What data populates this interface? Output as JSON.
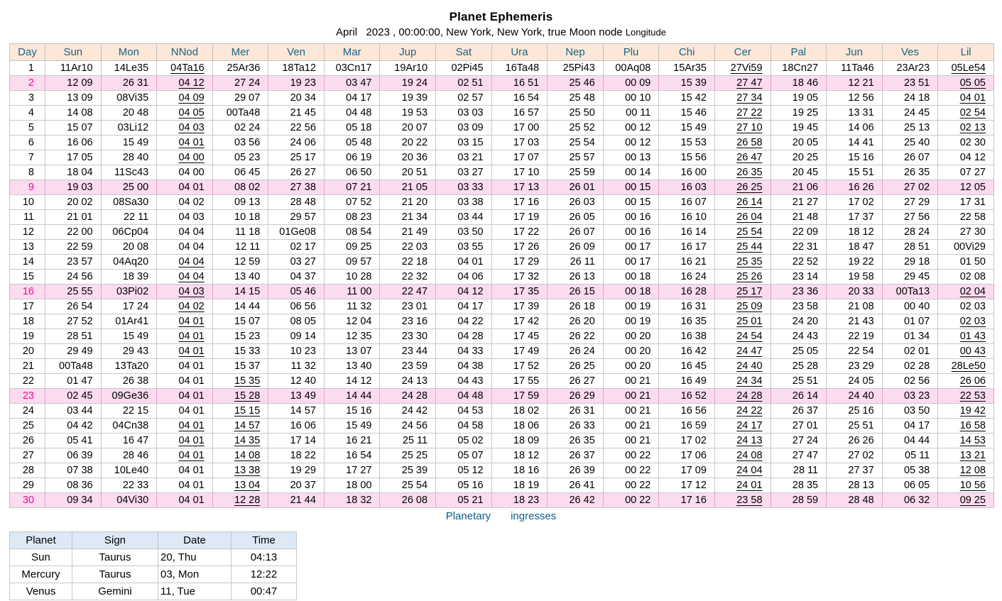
{
  "title": "Planet Ephemeris",
  "subtitle": {
    "main": "April   2023 , 00:00:00, New York, New York, true Moon node ",
    "suffix": "Longitude"
  },
  "colors": {
    "header_bg": "#fce7d9",
    "header_text": "#186582",
    "sunday_row_bg": "#fbdbee",
    "sunday_day_text": "#ee0a9e",
    "link_text": "#0c5f87",
    "ingress_header_bg": "#ddeaf6",
    "grid_border": "#c8c8c8"
  },
  "ephemeris": {
    "columns": [
      "Day",
      "Sun",
      "Mon",
      "NNod",
      "Mer",
      "Ven",
      "Mar",
      "Jup",
      "Sat",
      "Ura",
      "Nep",
      "Plu",
      "Chi",
      "Cer",
      "Pal",
      "Jun",
      "Ves",
      "Lil"
    ],
    "sunday_days": [
      2,
      9,
      16,
      23,
      30
    ],
    "rows": [
      {
        "day": "1",
        "sunday": false,
        "underline": [
          2,
          12,
          16
        ],
        "values": [
          "11Ar10",
          "14Le35",
          "04Ta16",
          "25Ar36",
          "18Ta12",
          "03Cn17",
          "19Ar10",
          "02Pi45",
          "16Ta48",
          "25Pi43",
          "00Aq08",
          "15Ar35",
          "27Vi59",
          "18Cn27",
          "11Ta46",
          "23Ar23",
          "05Le54"
        ]
      },
      {
        "day": "2",
        "sunday": true,
        "underline": [
          2,
          12,
          16
        ],
        "values": [
          "12 09",
          "26 31",
          "04 12",
          "27 24",
          "19 23",
          "03 47",
          "19 24",
          "02 51",
          "16 51",
          "25 46",
          "00 09",
          "15 39",
          "27 47",
          "18 46",
          "12 21",
          "23 51",
          "05 05"
        ]
      },
      {
        "day": "3",
        "sunday": false,
        "underline": [
          2,
          12,
          16
        ],
        "values": [
          "13 09",
          "08Vi35",
          "04 09",
          "29 07",
          "20 34",
          "04 17",
          "19 39",
          "02 57",
          "16 54",
          "25 48",
          "00 10",
          "15 42",
          "27 34",
          "19 05",
          "12 56",
          "24 18",
          "04 01"
        ]
      },
      {
        "day": "4",
        "sunday": false,
        "underline": [
          2,
          12,
          16
        ],
        "values": [
          "14 08",
          "20 48",
          "04 05",
          "00Ta48",
          "21 45",
          "04 48",
          "19 53",
          "03 03",
          "16 57",
          "25 50",
          "00 11",
          "15 46",
          "27 22",
          "19 25",
          "13 31",
          "24 45",
          "02 54"
        ]
      },
      {
        "day": "5",
        "sunday": false,
        "underline": [
          2,
          12,
          16
        ],
        "values": [
          "15 07",
          "03Li12",
          "04 03",
          "02 24",
          "22 56",
          "05 18",
          "20 07",
          "03 09",
          "17 00",
          "25 52",
          "00 12",
          "15 49",
          "27 10",
          "19 45",
          "14 06",
          "25 13",
          "02 13"
        ]
      },
      {
        "day": "6",
        "sunday": false,
        "underline": [
          2,
          12
        ],
        "values": [
          "16 06",
          "15 49",
          "04 01",
          "03 56",
          "24 06",
          "05 48",
          "20 22",
          "03 15",
          "17 03",
          "25 54",
          "00 12",
          "15 53",
          "26 58",
          "20 05",
          "14 41",
          "25 40",
          "02 30"
        ]
      },
      {
        "day": "7",
        "sunday": false,
        "underline": [
          2,
          12
        ],
        "values": [
          "17 05",
          "28 40",
          "04 00",
          "05 23",
          "25 17",
          "06 19",
          "20 36",
          "03 21",
          "17 07",
          "25 57",
          "00 13",
          "15 56",
          "26 47",
          "20 25",
          "15 16",
          "26 07",
          "04 12"
        ]
      },
      {
        "day": "8",
        "sunday": false,
        "underline": [
          12
        ],
        "values": [
          "18 04",
          "11Sc43",
          "04 00",
          "06 45",
          "26 27",
          "06 50",
          "20 51",
          "03 27",
          "17 10",
          "25 59",
          "00 14",
          "16 00",
          "26 35",
          "20 45",
          "15 51",
          "26 35",
          "07 27"
        ]
      },
      {
        "day": "9",
        "sunday": true,
        "underline": [
          12
        ],
        "values": [
          "19 03",
          "25 00",
          "04 01",
          "08 02",
          "27 38",
          "07 21",
          "21 05",
          "03 33",
          "17 13",
          "26 01",
          "00 15",
          "16 03",
          "26 25",
          "21 06",
          "16 26",
          "27 02",
          "12 05"
        ]
      },
      {
        "day": "10",
        "sunday": false,
        "underline": [
          12
        ],
        "values": [
          "20 02",
          "08Sa30",
          "04 02",
          "09 13",
          "28 48",
          "07 52",
          "21 20",
          "03 38",
          "17 16",
          "26 03",
          "00 15",
          "16 07",
          "26 14",
          "21 27",
          "17 02",
          "27 29",
          "17 31"
        ]
      },
      {
        "day": "11",
        "sunday": false,
        "underline": [
          12
        ],
        "values": [
          "21 01",
          "22 11",
          "04 03",
          "10 18",
          "29 57",
          "08 23",
          "21 34",
          "03 44",
          "17 19",
          "26 05",
          "00 16",
          "16 10",
          "26 04",
          "21 48",
          "17 37",
          "27 56",
          "22 58"
        ]
      },
      {
        "day": "12",
        "sunday": false,
        "underline": [
          12
        ],
        "values": [
          "22 00",
          "06Cp04",
          "04 04",
          "11 18",
          "01Ge08",
          "08 54",
          "21 49",
          "03 50",
          "17 22",
          "26 07",
          "00 16",
          "16 14",
          "25 54",
          "22 09",
          "18 12",
          "28 24",
          "27 30"
        ]
      },
      {
        "day": "13",
        "sunday": false,
        "underline": [
          12
        ],
        "values": [
          "22 59",
          "20 08",
          "04 04",
          "12 11",
          "02 17",
          "09 25",
          "22 03",
          "03 55",
          "17 26",
          "26 09",
          "00 17",
          "16 17",
          "25 44",
          "22 31",
          "18 47",
          "28 51",
          "00Vi29"
        ]
      },
      {
        "day": "14",
        "sunday": false,
        "underline": [
          2,
          12
        ],
        "values": [
          "23 57",
          "04Aq20",
          "04 04",
          "12 59",
          "03 27",
          "09 57",
          "22 18",
          "04 01",
          "17 29",
          "26 11",
          "00 17",
          "16 21",
          "25 35",
          "22 52",
          "19 22",
          "29 18",
          "01 50"
        ]
      },
      {
        "day": "15",
        "sunday": false,
        "underline": [
          2,
          12
        ],
        "values": [
          "24 56",
          "18 39",
          "04 04",
          "13 40",
          "04 37",
          "10 28",
          "22 32",
          "04 06",
          "17 32",
          "26 13",
          "00 18",
          "16 24",
          "25 26",
          "23 14",
          "19 58",
          "29 45",
          "02 08"
        ]
      },
      {
        "day": "16",
        "sunday": true,
        "underline": [
          2,
          12,
          16
        ],
        "values": [
          "25 55",
          "03Pi02",
          "04 03",
          "14 15",
          "05 46",
          "11 00",
          "22 47",
          "04 12",
          "17 35",
          "26 15",
          "00 18",
          "16 28",
          "25 17",
          "23 36",
          "20 33",
          "00Ta13",
          "02 04"
        ]
      },
      {
        "day": "17",
        "sunday": false,
        "underline": [
          2,
          12
        ],
        "values": [
          "26 54",
          "17 24",
          "04 02",
          "14 44",
          "06 56",
          "11 32",
          "23 01",
          "04 17",
          "17 39",
          "26 18",
          "00 19",
          "16 31",
          "25 09",
          "23 58",
          "21 08",
          "00 40",
          "02 03"
        ]
      },
      {
        "day": "18",
        "sunday": false,
        "underline": [
          2,
          12,
          16
        ],
        "values": [
          "27 52",
          "01Ar41",
          "04 01",
          "15 07",
          "08 05",
          "12 04",
          "23 16",
          "04 22",
          "17 42",
          "26 20",
          "00 19",
          "16 35",
          "25 01",
          "24 20",
          "21 43",
          "01 07",
          "02 03"
        ]
      },
      {
        "day": "19",
        "sunday": false,
        "underline": [
          2,
          12,
          16
        ],
        "values": [
          "28 51",
          "15 49",
          "04 01",
          "15 23",
          "09 14",
          "12 35",
          "23 30",
          "04 28",
          "17 45",
          "26 22",
          "00 20",
          "16 38",
          "24 54",
          "24 43",
          "22 19",
          "01 34",
          "01 43"
        ]
      },
      {
        "day": "20",
        "sunday": false,
        "underline": [
          2,
          12,
          16
        ],
        "values": [
          "29 49",
          "29 43",
          "04 01",
          "15 33",
          "10 23",
          "13 07",
          "23 44",
          "04 33",
          "17 49",
          "26 24",
          "00 20",
          "16 42",
          "24 47",
          "25 05",
          "22 54",
          "02 01",
          "00 43"
        ]
      },
      {
        "day": "21",
        "sunday": false,
        "underline": [
          12,
          16
        ],
        "values": [
          "00Ta48",
          "13Ta20",
          "04 01",
          "15 37",
          "11 32",
          "13 40",
          "23 59",
          "04 38",
          "17 52",
          "26 25",
          "00 20",
          "16 45",
          "24 40",
          "25 28",
          "23 29",
          "02 28",
          "28Le50"
        ]
      },
      {
        "day": "22",
        "sunday": false,
        "underline": [
          3,
          12,
          16
        ],
        "values": [
          "01 47",
          "26 38",
          "04 01",
          "15 35",
          "12 40",
          "14 12",
          "24 13",
          "04 43",
          "17 55",
          "26 27",
          "00 21",
          "16 49",
          "24 34",
          "25 51",
          "24 05",
          "02 56",
          "26 06"
        ]
      },
      {
        "day": "23",
        "sunday": true,
        "underline": [
          3,
          12,
          16
        ],
        "values": [
          "02 45",
          "09Ge36",
          "04 01",
          "15 28",
          "13 49",
          "14 44",
          "24 28",
          "04 48",
          "17 59",
          "26 29",
          "00 21",
          "16 52",
          "24 28",
          "26 14",
          "24 40",
          "03 23",
          "22 53"
        ]
      },
      {
        "day": "24",
        "sunday": false,
        "underline": [
          3,
          12,
          16
        ],
        "values": [
          "03 44",
          "22 15",
          "04 01",
          "15 15",
          "14 57",
          "15 16",
          "24 42",
          "04 53",
          "18 02",
          "26 31",
          "00 21",
          "16 56",
          "24 22",
          "26 37",
          "25 16",
          "03 50",
          "19 42"
        ]
      },
      {
        "day": "25",
        "sunday": false,
        "underline": [
          2,
          3,
          12,
          16
        ],
        "values": [
          "04 42",
          "04Cn38",
          "04 01",
          "14 57",
          "16 06",
          "15 49",
          "24 56",
          "04 58",
          "18 06",
          "26 33",
          "00 21",
          "16 59",
          "24 17",
          "27 01",
          "25 51",
          "04 17",
          "16 58"
        ]
      },
      {
        "day": "26",
        "sunday": false,
        "underline": [
          2,
          3,
          12,
          16
        ],
        "values": [
          "05 41",
          "16 47",
          "04 01",
          "14 35",
          "17 14",
          "16 21",
          "25 11",
          "05 02",
          "18 09",
          "26 35",
          "00 21",
          "17 02",
          "24 13",
          "27 24",
          "26 26",
          "04 44",
          "14 53"
        ]
      },
      {
        "day": "27",
        "sunday": false,
        "underline": [
          2,
          3,
          12,
          16
        ],
        "values": [
          "06 39",
          "28 46",
          "04 01",
          "14 08",
          "18 22",
          "16 54",
          "25 25",
          "05 07",
          "18 12",
          "26 37",
          "00 22",
          "17 06",
          "24 08",
          "27 47",
          "27 02",
          "05 11",
          "13 21"
        ]
      },
      {
        "day": "28",
        "sunday": false,
        "underline": [
          3,
          12,
          16
        ],
        "values": [
          "07 38",
          "10Le40",
          "04 01",
          "13 38",
          "19 29",
          "17 27",
          "25 39",
          "05 12",
          "18 16",
          "26 39",
          "00 22",
          "17 09",
          "24 04",
          "28 11",
          "27 37",
          "05 38",
          "12 08"
        ]
      },
      {
        "day": "29",
        "sunday": false,
        "underline": [
          3,
          12,
          16
        ],
        "values": [
          "08 36",
          "22 33",
          "04 01",
          "13 04",
          "20 37",
          "18 00",
          "25 54",
          "05 16",
          "18 19",
          "26 41",
          "00 22",
          "17 12",
          "24 01",
          "28 35",
          "28 13",
          "06 05",
          "10 56"
        ]
      },
      {
        "day": "30",
        "sunday": true,
        "underline": [
          3,
          12,
          16
        ],
        "values": [
          "09 34",
          "04Vi30",
          "04 01",
          "12 28",
          "21 44",
          "18 32",
          "26 08",
          "05 21",
          "18 23",
          "26 42",
          "00 22",
          "17 16",
          "23 58",
          "28 59",
          "28 48",
          "06 32",
          "09 25"
        ]
      }
    ]
  },
  "links": {
    "words": [
      "Planetary",
      "ingresses"
    ]
  },
  "ingresses": {
    "columns": [
      "Planet",
      "Sign",
      "Date",
      "Time"
    ],
    "rows": [
      {
        "planet": "Sun",
        "sign": "Taurus",
        "date": "20, Thu",
        "time": "04:13"
      },
      {
        "planet": "Mercury",
        "sign": "Taurus",
        "date": "03, Mon",
        "time": "12:22"
      },
      {
        "planet": "Venus",
        "sign": "Gemini",
        "date": "11, Tue",
        "time": "00:47"
      }
    ]
  }
}
